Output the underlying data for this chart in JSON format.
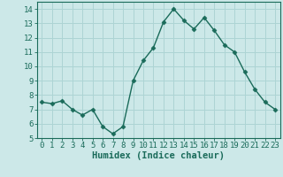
{
  "x": [
    0,
    1,
    2,
    3,
    4,
    5,
    6,
    7,
    8,
    9,
    10,
    11,
    12,
    13,
    14,
    15,
    16,
    17,
    18,
    19,
    20,
    21,
    22,
    23
  ],
  "y": [
    7.5,
    7.4,
    7.6,
    7.0,
    6.6,
    7.0,
    5.8,
    5.3,
    5.8,
    9.0,
    10.4,
    11.3,
    13.1,
    14.0,
    13.2,
    12.6,
    13.4,
    12.5,
    11.5,
    11.0,
    9.6,
    8.4,
    7.5,
    7.0
  ],
  "line_color": "#1a6b5a",
  "marker": "D",
  "marker_size": 2.5,
  "bg_color": "#cce8e8",
  "grid_color": "#add4d4",
  "xlabel": "Humidex (Indice chaleur)",
  "ylabel": "",
  "xlim": [
    -0.5,
    23.5
  ],
  "ylim": [
    5,
    14.5
  ],
  "yticks": [
    5,
    6,
    7,
    8,
    9,
    10,
    11,
    12,
    13,
    14
  ],
  "xticks": [
    0,
    1,
    2,
    3,
    4,
    5,
    6,
    7,
    8,
    9,
    10,
    11,
    12,
    13,
    14,
    15,
    16,
    17,
    18,
    19,
    20,
    21,
    22,
    23
  ],
  "axis_color": "#1a6b5a",
  "tick_color": "#1a6b5a",
  "label_color": "#1a6b5a",
  "font_size_xlabel": 7.5,
  "font_size_tick": 6.5,
  "linewidth": 1.0
}
